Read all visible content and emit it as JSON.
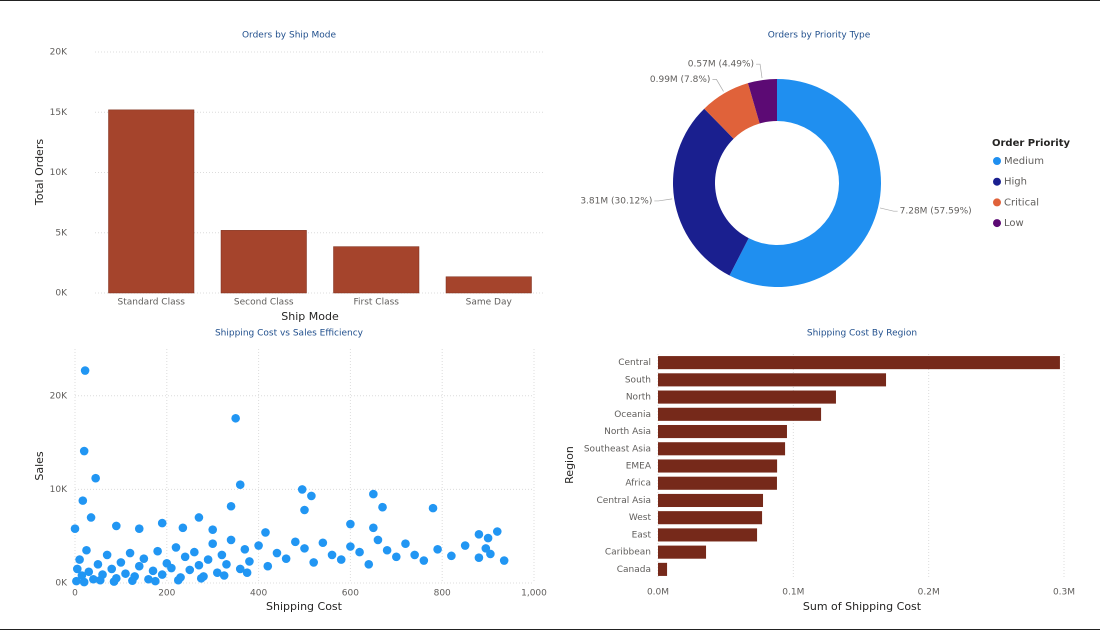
{
  "chart_data": [
    {
      "type": "bar",
      "title": "Orders by Ship Mode",
      "x_label": "Ship Mode",
      "y_label": "Total Orders",
      "categories": [
        "Standard Class",
        "Second Class",
        "First Class",
        "Same Day"
      ],
      "values": [
        15200,
        5200,
        3850,
        1350
      ],
      "color": "#a5442c",
      "ylim": [
        0,
        20000
      ],
      "yticks": [
        {
          "value": 0,
          "label": "0K"
        },
        {
          "value": 5000,
          "label": "5K"
        },
        {
          "value": 10000,
          "label": "10K"
        },
        {
          "value": 15000,
          "label": "15K"
        },
        {
          "value": 20000,
          "label": "20K"
        }
      ],
      "grid": true
    },
    {
      "type": "donut",
      "title": "Orders by Priority Type",
      "legend_title": "Order Priority",
      "categories": [
        "Medium",
        "High",
        "Critical",
        "Low"
      ],
      "values": [
        7.28,
        3.81,
        0.99,
        0.57
      ],
      "value_labels": [
        "7.28M (57.59%)",
        "3.81M (30.12%)",
        "0.99M (7.8%)",
        "0.57M (4.49%)"
      ],
      "colors": [
        "#1f8ff0",
        "#1a1f8f",
        "#e0623a",
        "#5c0a74"
      ],
      "legend": "right"
    },
    {
      "type": "scatter",
      "title": "Shipping Cost vs Sales Efficiency",
      "x_label": "Shipping Cost",
      "y_label": "Sales",
      "color": "#2196f3",
      "x": [
        22,
        20,
        45,
        17,
        350,
        360,
        340,
        495,
        515,
        650,
        670,
        780,
        270,
        500,
        35,
        0,
        90,
        140,
        190,
        235,
        300,
        415,
        600,
        650,
        920,
        880,
        900,
        5,
        10,
        15,
        25,
        30,
        40,
        50,
        60,
        70,
        80,
        90,
        100,
        110,
        120,
        130,
        140,
        150,
        160,
        170,
        180,
        190,
        200,
        210,
        220,
        230,
        240,
        250,
        260,
        270,
        280,
        290,
        300,
        310,
        320,
        330,
        340,
        360,
        370,
        380,
        400,
        420,
        440,
        460,
        480,
        500,
        520,
        540,
        560,
        580,
        600,
        620,
        640,
        660,
        680,
        700,
        720,
        740,
        760,
        790,
        820,
        850,
        880,
        905,
        935,
        895,
        3,
        20,
        55,
        85,
        125,
        175,
        225,
        275,
        325,
        375
      ],
      "values": [
        22700,
        14100,
        11200,
        8800,
        17600,
        10500,
        8200,
        10000,
        9300,
        9500,
        8100,
        8000,
        7000,
        7800,
        7000,
        5800,
        6100,
        5800,
        6400,
        5900,
        5700,
        5400,
        6300,
        5900,
        5500,
        5200,
        4800,
        1500,
        2500,
        800,
        3500,
        1200,
        400,
        2000,
        900,
        3000,
        1500,
        500,
        2200,
        1000,
        3200,
        700,
        1800,
        2600,
        400,
        1300,
        3400,
        900,
        2100,
        1600,
        3800,
        600,
        2800,
        1400,
        3300,
        1900,
        700,
        2500,
        4200,
        1100,
        3000,
        2000,
        4600,
        1500,
        3600,
        2300,
        4000,
        1800,
        3200,
        2600,
        4400,
        3700,
        2200,
        4300,
        3000,
        2500,
        3900,
        3300,
        2000,
        4600,
        3500,
        2800,
        4200,
        3000,
        2400,
        3600,
        2900,
        4000,
        2700,
        3100,
        2400,
        3700,
        200,
        100,
        300,
        150,
        250,
        200,
        300,
        500,
        800,
        1100
      ],
      "xlim": [
        0,
        1000
      ],
      "xticks": [
        0,
        200,
        400,
        600,
        800,
        {
          "value": 1000,
          "label": "1,000"
        }
      ],
      "ylim": [
        0,
        25000
      ],
      "yticks": [
        {
          "value": 0,
          "label": "0K"
        },
        {
          "value": 10000,
          "label": "10K"
        },
        {
          "value": 20000,
          "label": "20K"
        }
      ],
      "grid": true
    },
    {
      "type": "barh",
      "title": "Shipping Cost By Region",
      "x_label": "Sum of Shipping Cost",
      "y_label": "Region",
      "categories": [
        "Central",
        "South",
        "North",
        "Oceania",
        "North Asia",
        "Southeast Asia",
        "EMEA",
        "Africa",
        "Central Asia",
        "West",
        "East",
        "Caribbean",
        "Canada"
      ],
      "values": [
        297000,
        168500,
        131500,
        120500,
        95300,
        93900,
        88000,
        87900,
        77600,
        76900,
        73200,
        35500,
        6700
      ],
      "color": "#76291a",
      "xlim": [
        0,
        300000
      ],
      "xticks": [
        {
          "value": 0,
          "label": "0.0M"
        },
        {
          "value": 100000,
          "label": "0.1M"
        },
        {
          "value": 200000,
          "label": "0.2M"
        },
        {
          "value": 300000,
          "label": "0.3M"
        }
      ],
      "grid": true
    }
  ]
}
